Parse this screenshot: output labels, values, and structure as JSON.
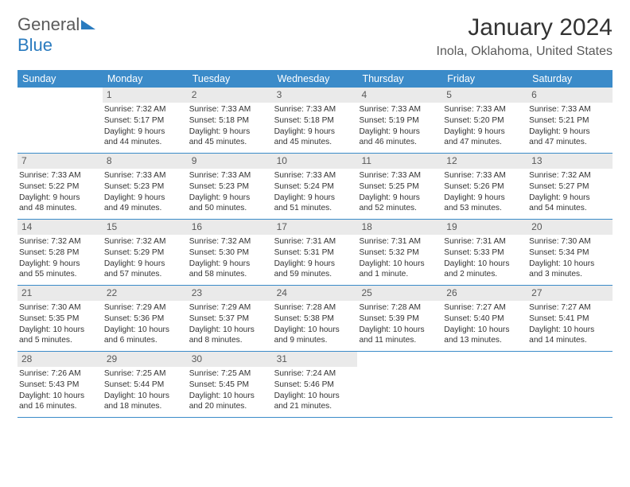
{
  "logo": {
    "word1": "General",
    "word2": "Blue"
  },
  "title": "January 2024",
  "location": "Inola, Oklahoma, United States",
  "colors": {
    "header_blue": "#3b8bc9",
    "daynum_bg": "#eaeaea",
    "text_gray": "#5a5a5a"
  },
  "day_headers": [
    "Sunday",
    "Monday",
    "Tuesday",
    "Wednesday",
    "Thursday",
    "Friday",
    "Saturday"
  ],
  "weeks": [
    [
      {
        "day": "",
        "sunrise": "",
        "sunset": "",
        "daylight1": "",
        "daylight2": ""
      },
      {
        "day": "1",
        "sunrise": "Sunrise: 7:32 AM",
        "sunset": "Sunset: 5:17 PM",
        "daylight1": "Daylight: 9 hours",
        "daylight2": "and 44 minutes."
      },
      {
        "day": "2",
        "sunrise": "Sunrise: 7:33 AM",
        "sunset": "Sunset: 5:18 PM",
        "daylight1": "Daylight: 9 hours",
        "daylight2": "and 45 minutes."
      },
      {
        "day": "3",
        "sunrise": "Sunrise: 7:33 AM",
        "sunset": "Sunset: 5:18 PM",
        "daylight1": "Daylight: 9 hours",
        "daylight2": "and 45 minutes."
      },
      {
        "day": "4",
        "sunrise": "Sunrise: 7:33 AM",
        "sunset": "Sunset: 5:19 PM",
        "daylight1": "Daylight: 9 hours",
        "daylight2": "and 46 minutes."
      },
      {
        "day": "5",
        "sunrise": "Sunrise: 7:33 AM",
        "sunset": "Sunset: 5:20 PM",
        "daylight1": "Daylight: 9 hours",
        "daylight2": "and 47 minutes."
      },
      {
        "day": "6",
        "sunrise": "Sunrise: 7:33 AM",
        "sunset": "Sunset: 5:21 PM",
        "daylight1": "Daylight: 9 hours",
        "daylight2": "and 47 minutes."
      }
    ],
    [
      {
        "day": "7",
        "sunrise": "Sunrise: 7:33 AM",
        "sunset": "Sunset: 5:22 PM",
        "daylight1": "Daylight: 9 hours",
        "daylight2": "and 48 minutes."
      },
      {
        "day": "8",
        "sunrise": "Sunrise: 7:33 AM",
        "sunset": "Sunset: 5:23 PM",
        "daylight1": "Daylight: 9 hours",
        "daylight2": "and 49 minutes."
      },
      {
        "day": "9",
        "sunrise": "Sunrise: 7:33 AM",
        "sunset": "Sunset: 5:23 PM",
        "daylight1": "Daylight: 9 hours",
        "daylight2": "and 50 minutes."
      },
      {
        "day": "10",
        "sunrise": "Sunrise: 7:33 AM",
        "sunset": "Sunset: 5:24 PM",
        "daylight1": "Daylight: 9 hours",
        "daylight2": "and 51 minutes."
      },
      {
        "day": "11",
        "sunrise": "Sunrise: 7:33 AM",
        "sunset": "Sunset: 5:25 PM",
        "daylight1": "Daylight: 9 hours",
        "daylight2": "and 52 minutes."
      },
      {
        "day": "12",
        "sunrise": "Sunrise: 7:33 AM",
        "sunset": "Sunset: 5:26 PM",
        "daylight1": "Daylight: 9 hours",
        "daylight2": "and 53 minutes."
      },
      {
        "day": "13",
        "sunrise": "Sunrise: 7:32 AM",
        "sunset": "Sunset: 5:27 PM",
        "daylight1": "Daylight: 9 hours",
        "daylight2": "and 54 minutes."
      }
    ],
    [
      {
        "day": "14",
        "sunrise": "Sunrise: 7:32 AM",
        "sunset": "Sunset: 5:28 PM",
        "daylight1": "Daylight: 9 hours",
        "daylight2": "and 55 minutes."
      },
      {
        "day": "15",
        "sunrise": "Sunrise: 7:32 AM",
        "sunset": "Sunset: 5:29 PM",
        "daylight1": "Daylight: 9 hours",
        "daylight2": "and 57 minutes."
      },
      {
        "day": "16",
        "sunrise": "Sunrise: 7:32 AM",
        "sunset": "Sunset: 5:30 PM",
        "daylight1": "Daylight: 9 hours",
        "daylight2": "and 58 minutes."
      },
      {
        "day": "17",
        "sunrise": "Sunrise: 7:31 AM",
        "sunset": "Sunset: 5:31 PM",
        "daylight1": "Daylight: 9 hours",
        "daylight2": "and 59 minutes."
      },
      {
        "day": "18",
        "sunrise": "Sunrise: 7:31 AM",
        "sunset": "Sunset: 5:32 PM",
        "daylight1": "Daylight: 10 hours",
        "daylight2": "and 1 minute."
      },
      {
        "day": "19",
        "sunrise": "Sunrise: 7:31 AM",
        "sunset": "Sunset: 5:33 PM",
        "daylight1": "Daylight: 10 hours",
        "daylight2": "and 2 minutes."
      },
      {
        "day": "20",
        "sunrise": "Sunrise: 7:30 AM",
        "sunset": "Sunset: 5:34 PM",
        "daylight1": "Daylight: 10 hours",
        "daylight2": "and 3 minutes."
      }
    ],
    [
      {
        "day": "21",
        "sunrise": "Sunrise: 7:30 AM",
        "sunset": "Sunset: 5:35 PM",
        "daylight1": "Daylight: 10 hours",
        "daylight2": "and 5 minutes."
      },
      {
        "day": "22",
        "sunrise": "Sunrise: 7:29 AM",
        "sunset": "Sunset: 5:36 PM",
        "daylight1": "Daylight: 10 hours",
        "daylight2": "and 6 minutes."
      },
      {
        "day": "23",
        "sunrise": "Sunrise: 7:29 AM",
        "sunset": "Sunset: 5:37 PM",
        "daylight1": "Daylight: 10 hours",
        "daylight2": "and 8 minutes."
      },
      {
        "day": "24",
        "sunrise": "Sunrise: 7:28 AM",
        "sunset": "Sunset: 5:38 PM",
        "daylight1": "Daylight: 10 hours",
        "daylight2": "and 9 minutes."
      },
      {
        "day": "25",
        "sunrise": "Sunrise: 7:28 AM",
        "sunset": "Sunset: 5:39 PM",
        "daylight1": "Daylight: 10 hours",
        "daylight2": "and 11 minutes."
      },
      {
        "day": "26",
        "sunrise": "Sunrise: 7:27 AM",
        "sunset": "Sunset: 5:40 PM",
        "daylight1": "Daylight: 10 hours",
        "daylight2": "and 13 minutes."
      },
      {
        "day": "27",
        "sunrise": "Sunrise: 7:27 AM",
        "sunset": "Sunset: 5:41 PM",
        "daylight1": "Daylight: 10 hours",
        "daylight2": "and 14 minutes."
      }
    ],
    [
      {
        "day": "28",
        "sunrise": "Sunrise: 7:26 AM",
        "sunset": "Sunset: 5:43 PM",
        "daylight1": "Daylight: 10 hours",
        "daylight2": "and 16 minutes."
      },
      {
        "day": "29",
        "sunrise": "Sunrise: 7:25 AM",
        "sunset": "Sunset: 5:44 PM",
        "daylight1": "Daylight: 10 hours",
        "daylight2": "and 18 minutes."
      },
      {
        "day": "30",
        "sunrise": "Sunrise: 7:25 AM",
        "sunset": "Sunset: 5:45 PM",
        "daylight1": "Daylight: 10 hours",
        "daylight2": "and 20 minutes."
      },
      {
        "day": "31",
        "sunrise": "Sunrise: 7:24 AM",
        "sunset": "Sunset: 5:46 PM",
        "daylight1": "Daylight: 10 hours",
        "daylight2": "and 21 minutes."
      },
      {
        "day": "",
        "sunrise": "",
        "sunset": "",
        "daylight1": "",
        "daylight2": ""
      },
      {
        "day": "",
        "sunrise": "",
        "sunset": "",
        "daylight1": "",
        "daylight2": ""
      },
      {
        "day": "",
        "sunrise": "",
        "sunset": "",
        "daylight1": "",
        "daylight2": ""
      }
    ]
  ]
}
